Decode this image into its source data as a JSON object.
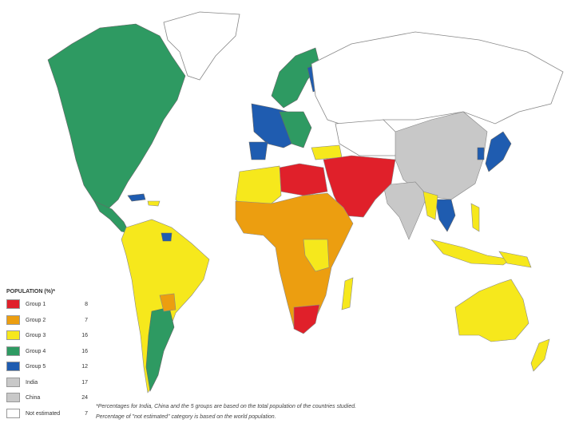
{
  "legend": {
    "title": "POPULATION (%)*",
    "items": [
      {
        "label": "Group 1",
        "value": 8,
        "color": "#e0202a"
      },
      {
        "label": "Group 2",
        "value": 7,
        "color": "#ec9e10"
      },
      {
        "label": "Group 3",
        "value": 16,
        "color": "#f6e81c"
      },
      {
        "label": "Group 4",
        "value": 16,
        "color": "#2e9a62"
      },
      {
        "label": "Group 5",
        "value": 12,
        "color": "#1f5cb0"
      },
      {
        "label": "India",
        "value": 17,
        "color": "#c8c8c8"
      },
      {
        "label": "China",
        "value": 24,
        "color": "#c8c8c8"
      },
      {
        "label": "Not estimated",
        "value": 7,
        "color": "#ffffff"
      }
    ]
  },
  "footnotes": [
    "*Percentages for India, China and the 5 groups are based on the total population of the countries studied.",
    "Percentage of \"not estimated\" category is based on the world population."
  ]
}
